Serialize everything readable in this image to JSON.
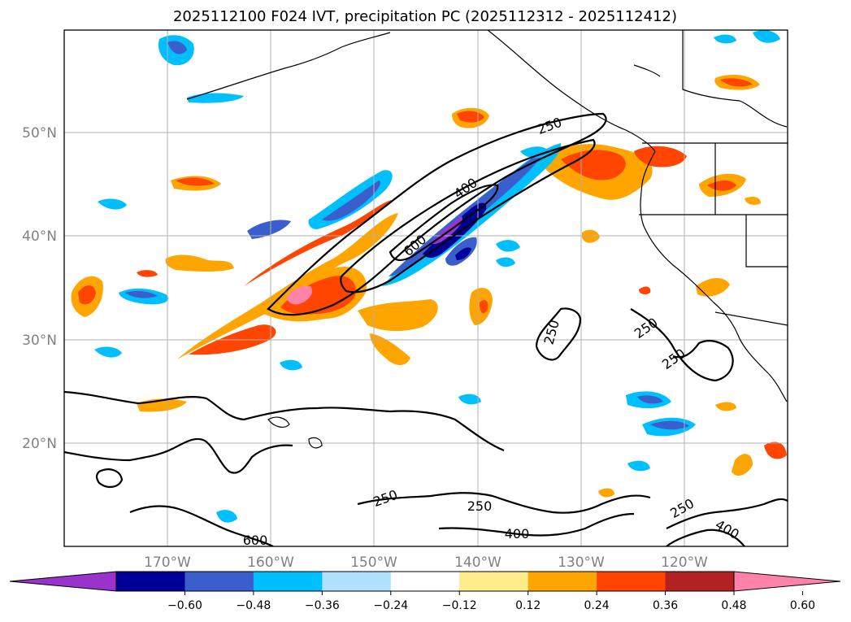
{
  "title": "2025112100 F024 IVT, precipitation PC (2025112312 - 2025112412)",
  "map": {
    "lat_labels": [
      "50°N",
      "40°N",
      "30°N",
      "20°N"
    ],
    "lon_labels": [
      "170°W",
      "160°W",
      "150°W",
      "140°W",
      "130°W",
      "120°W"
    ],
    "grid": true
  },
  "contours": {
    "variable": "IVT",
    "levels": [
      250,
      400,
      600
    ],
    "labels": [
      "250",
      "400",
      "600",
      "250",
      "250",
      "250",
      "250",
      "250",
      "400",
      "600",
      "250",
      "400"
    ],
    "color": "#000000"
  },
  "colorbar": {
    "colors": [
      "#9933cc",
      "#000099",
      "#3a5fcd",
      "#00bfff",
      "#b0e2ff",
      "#ffffff",
      "#ffec8b",
      "#ffa500",
      "#ff4500",
      "#b22222",
      "#ff82ab"
    ],
    "ticks": [
      "−0.60",
      "−0.48",
      "−0.36",
      "−0.24",
      "−0.12",
      "0.12",
      "0.24",
      "0.36",
      "0.48",
      "0.60"
    ],
    "extend": "both"
  }
}
